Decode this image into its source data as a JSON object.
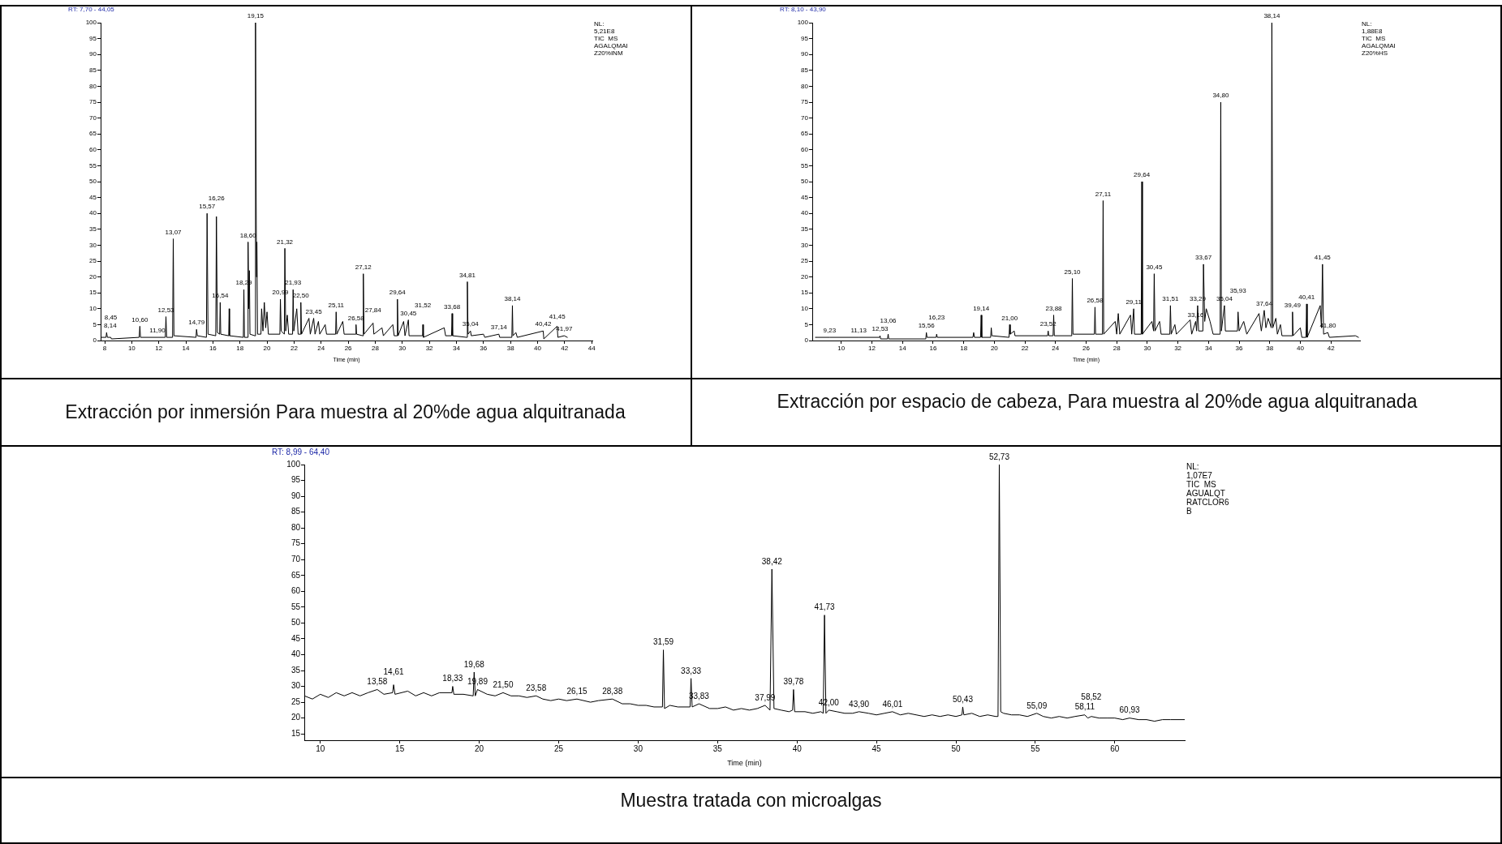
{
  "chart_data": [
    {
      "type": "line",
      "title": "Extracción por inmersión Para muestra al 20%de agua alquitranada",
      "subtitle": "RT: 7,70 - 44,05",
      "xlabel": "Time (min)",
      "xlim": [
        7.7,
        44.05
      ],
      "xticks": [
        8,
        10,
        12,
        14,
        16,
        18,
        20,
        22,
        24,
        26,
        28,
        30,
        32,
        34,
        36,
        38,
        40,
        42,
        44
      ],
      "ylim": [
        0,
        100
      ],
      "yticks": [
        0,
        5,
        10,
        15,
        20,
        25,
        30,
        35,
        40,
        45,
        50,
        55,
        60,
        65,
        70,
        75,
        80,
        85,
        90,
        95,
        100
      ],
      "series": [
        {
          "color": "#000000",
          "x": [
            7.7,
            8.1,
            8.14,
            8.2,
            8.45,
            8.5,
            10.55,
            10.6,
            10.65,
            11.9,
            12.48,
            12.53,
            12.58,
            13.02,
            13.07,
            13.12,
            14.75,
            14.79,
            14.85,
            15.52,
            15.57,
            15.64,
            16.21,
            16.26,
            16.33,
            16.5,
            16.54,
            16.58,
            17.17,
            17.2,
            17.23,
            18.25,
            18.29,
            18.33,
            18.56,
            18.6,
            18.65,
            18.7,
            18.74,
            19.1,
            19.15,
            19.22,
            19.25,
            19.3,
            19.55,
            19.6,
            19.7,
            19.8,
            19.9,
            20.0,
            20.1,
            20.95,
            20.99,
            21.05,
            21.28,
            21.32,
            21.38,
            21.5,
            21.6,
            21.89,
            21.93,
            21.98,
            22.2,
            22.3,
            22.46,
            22.5,
            22.55,
            23.1,
            23.2,
            23.45,
            23.55,
            23.8,
            23.9,
            24.3,
            24.4,
            25.07,
            25.11,
            25.16,
            25.6,
            25.7,
            26.55,
            26.58,
            26.62,
            27.08,
            27.12,
            27.17,
            27.84,
            27.9,
            28.5,
            28.6,
            29.3,
            29.4,
            29.6,
            29.64,
            29.69,
            30.1,
            30.2,
            30.45,
            30.5,
            31.5,
            31.52,
            31.56,
            33.1,
            33.2,
            33.64,
            33.68,
            33.72,
            34.77,
            34.81,
            34.86,
            35.04,
            35.1,
            36.0,
            36.1,
            37.14,
            37.2,
            38.1,
            38.14,
            38.18,
            38.4,
            38.5,
            40.42,
            40.46,
            41.45,
            41.5,
            41.97,
            42.2
          ],
          "values": [
            1,
            1,
            2.5,
            1,
            1,
            0.5,
            1,
            4.5,
            1,
            1,
            1,
            7.5,
            1,
            1,
            32,
            1.5,
            1,
            3.5,
            1.5,
            1,
            40,
            2,
            1.5,
            39,
            2.5,
            2,
            12,
            2,
            1.5,
            10,
            1.5,
            1,
            16,
            1,
            1,
            31,
            10,
            22,
            2,
            1.5,
            100,
            20,
            31,
            2,
            2,
            10,
            3,
            12,
            4,
            9,
            2,
            2,
            13,
            3,
            2,
            29,
            3,
            8,
            2,
            2,
            16,
            3,
            10,
            2,
            2,
            12,
            2,
            7,
            2,
            7,
            2,
            6,
            2,
            5,
            2,
            2,
            9,
            2,
            6,
            2,
            2,
            5,
            2,
            1.5,
            21,
            2,
            5.5,
            2,
            4,
            1.5,
            5,
            1.5,
            1.5,
            13,
            1.5,
            6,
            1.5,
            6.5,
            1.5,
            1.5,
            5,
            1,
            4,
            1.5,
            1.5,
            8.5,
            1.5,
            1,
            18.5,
            2,
            3,
            1.5,
            2,
            1,
            2,
            1,
            1,
            11,
            1.5,
            2.5,
            1,
            3,
            0.5,
            4.5,
            1,
            1.5,
            1
          ]
        }
      ],
      "annotations": [
        "NL:",
        "5,21E8",
        "TIC  MS",
        "AGALQMAI",
        "Z20%INM",
        {
          "text": "8,14",
          "x": 8.14,
          "y": 2.5
        },
        {
          "text": "8,45",
          "x": 8.45,
          "y": 1
        },
        {
          "text": "10,60",
          "x": 10.6,
          "y": 4.5
        },
        {
          "text": "11,90",
          "x": 11.9,
          "y": 1
        },
        {
          "text": "12,53",
          "x": 12.53,
          "y": 7.5
        },
        {
          "text": "13,07",
          "x": 13.07,
          "y": 32
        },
        {
          "text": "14,79",
          "x": 14.79,
          "y": 3.5
        },
        {
          "text": "15,57",
          "x": 15.57,
          "y": 40
        },
        {
          "text": "16,26",
          "x": 16.26,
          "y": 39
        },
        {
          "text": "16,54",
          "x": 16.54,
          "y": 12
        },
        {
          "text": "18,29",
          "x": 18.29,
          "y": 16
        },
        {
          "text": "18,60",
          "x": 18.6,
          "y": 31
        },
        {
          "text": "19,15",
          "x": 19.15,
          "y": 100
        },
        {
          "text": "20,99",
          "x": 20.99,
          "y": 13
        },
        {
          "text": "21,32",
          "x": 21.32,
          "y": 29
        },
        {
          "text": "21,93",
          "x": 21.93,
          "y": 16
        },
        {
          "text": "22,50",
          "x": 22.5,
          "y": 12
        },
        {
          "text": "23,45",
          "x": 23.45,
          "y": 7
        },
        {
          "text": "25,11",
          "x": 25.11,
          "y": 9
        },
        {
          "text": "26,58",
          "x": 26.58,
          "y": 5
        },
        {
          "text": "27,12",
          "x": 27.12,
          "y": 21
        },
        {
          "text": "27,84",
          "x": 27.84,
          "y": 5.5
        },
        {
          "text": "29,64",
          "x": 29.64,
          "y": 13
        },
        {
          "text": "30,45",
          "x": 30.45,
          "y": 6.5
        },
        {
          "text": "31,52",
          "x": 31.52,
          "y": 5
        },
        {
          "text": "33,68",
          "x": 33.68,
          "y": 8.5
        },
        {
          "text": "34,81",
          "x": 34.81,
          "y": 18.5
        },
        {
          "text": "35,04",
          "x": 35.04,
          "y": 3
        },
        {
          "text": "37,14",
          "x": 37.14,
          "y": 2
        },
        {
          "text": "38,14",
          "x": 38.14,
          "y": 11
        },
        {
          "text": "40,42",
          "x": 40.42,
          "y": 3
        },
        {
          "text": "41,45",
          "x": 41.45,
          "y": 4.5
        },
        {
          "text": "41,97",
          "x": 41.97,
          "y": 1.5
        }
      ]
    },
    {
      "type": "line",
      "title": "Extracción por espacio de cabeza, Para muestra al 20%de agua alquitranada",
      "subtitle": "RT: 8,10 - 43,90",
      "xlabel": "Time (min)",
      "xlim": [
        8.1,
        43.9
      ],
      "xticks": [
        10,
        12,
        14,
        16,
        18,
        20,
        22,
        24,
        26,
        28,
        30,
        32,
        34,
        36,
        38,
        40,
        42
      ],
      "ylim": [
        0,
        100
      ],
      "yticks": [
        0,
        5,
        10,
        15,
        20,
        25,
        30,
        35,
        40,
        45,
        50,
        55,
        60,
        65,
        70,
        75,
        80,
        85,
        90,
        95,
        100
      ],
      "series": [
        {
          "color": "#000000",
          "x": [
            8.3,
            9.23,
            11.13,
            12.5,
            12.53,
            12.57,
            13.02,
            13.06,
            13.1,
            15.52,
            15.56,
            15.6,
            16.2,
            16.23,
            16.27,
            18.6,
            18.65,
            18.7,
            19.1,
            19.14,
            19.18,
            19.76,
            19.8,
            19.84,
            20.96,
            21.0,
            21.04,
            21.3,
            21.35,
            23.48,
            23.52,
            23.56,
            23.84,
            23.88,
            23.92,
            25.06,
            25.1,
            25.14,
            26.54,
            26.58,
            26.62,
            27.07,
            27.11,
            27.15,
            27.9,
            28.0,
            28.1,
            28.2,
            28.9,
            28.98,
            29.11,
            29.16,
            29.6,
            29.64,
            29.68,
            30.3,
            30.41,
            30.45,
            30.5,
            30.8,
            30.9,
            31.47,
            31.51,
            31.56,
            31.8,
            31.9,
            32.8,
            32.9,
            33.16,
            33.22,
            33.29,
            33.35,
            33.63,
            33.67,
            33.75,
            33.85,
            34.1,
            34.3,
            34.76,
            34.8,
            34.84,
            35.04,
            35.1,
            35.89,
            35.93,
            36.0,
            36.3,
            36.5,
            37.3,
            37.45,
            37.64,
            37.75,
            37.9,
            38.1,
            38.14,
            38.2,
            38.4,
            38.5,
            38.7,
            38.8,
            39.45,
            39.49,
            39.53,
            40.0,
            40.1,
            40.37,
            40.41,
            40.45,
            41.3,
            41.38,
            41.45,
            41.52,
            41.8,
            41.9,
            43.6,
            43.8
          ],
          "values": [
            1,
            1,
            1,
            1,
            1.5,
            0.5,
            0.5,
            2,
            0.5,
            0.5,
            2.5,
            1,
            1,
            2,
            1,
            1,
            2.5,
            1,
            1,
            8,
            1,
            1,
            4,
            1.5,
            1,
            5,
            2,
            3,
            1.5,
            1.5,
            3,
            1.5,
            1.5,
            8,
            1.5,
            1.5,
            19.5,
            2,
            2,
            10.5,
            2,
            2,
            44,
            2,
            6,
            2,
            8.5,
            2,
            8,
            2,
            10,
            2,
            2,
            50,
            2,
            6,
            3,
            21,
            3,
            6,
            2,
            2,
            11,
            2,
            5,
            2,
            6.5,
            2,
            6,
            3,
            11,
            3,
            3,
            24,
            6,
            10,
            6,
            2,
            2,
            75,
            3,
            11,
            3,
            3,
            9,
            3,
            6,
            2,
            8.5,
            3,
            9.5,
            4,
            7,
            4,
            100,
            4,
            7,
            2,
            5,
            1.5,
            1.5,
            9,
            1.5,
            4,
            1,
            1,
            11.5,
            1,
            11,
            4,
            24,
            2,
            2.5,
            1,
            1.5,
            1
          ]
        }
      ],
      "annotations": [
        "NL:",
        "1,88E8",
        "TIC  MS",
        "AGALQMAI",
        "Z20%HS",
        {
          "text": "9,23",
          "x": 9.23,
          "y": 1
        },
        {
          "text": "11,13",
          "x": 11.13,
          "y": 1
        },
        {
          "text": "12,53",
          "x": 12.53,
          "y": 1.5
        },
        {
          "text": "13,06",
          "x": 13.06,
          "y": 2
        },
        {
          "text": "15,56",
          "x": 15.56,
          "y": 2.5
        },
        {
          "text": "16,23",
          "x": 16.23,
          "y": 2
        },
        {
          "text": "19,14",
          "x": 19.14,
          "y": 8
        },
        {
          "text": "21,00",
          "x": 21.0,
          "y": 5
        },
        {
          "text": "23,52",
          "x": 23.52,
          "y": 3
        },
        {
          "text": "23,88",
          "x": 23.88,
          "y": 8
        },
        {
          "text": "25,10",
          "x": 25.1,
          "y": 19.5
        },
        {
          "text": "26,58",
          "x": 26.58,
          "y": 10.5
        },
        {
          "text": "27,11",
          "x": 27.11,
          "y": 44
        },
        {
          "text": "29,11",
          "x": 29.11,
          "y": 10
        },
        {
          "text": "29,64",
          "x": 29.64,
          "y": 50
        },
        {
          "text": "30,45",
          "x": 30.45,
          "y": 21
        },
        {
          "text": "31,51",
          "x": 31.51,
          "y": 11
        },
        {
          "text": "33,16",
          "x": 33.16,
          "y": 6
        },
        {
          "text": "33,29",
          "x": 33.29,
          "y": 11
        },
        {
          "text": "33,67",
          "x": 33.67,
          "y": 24
        },
        {
          "text": "34,80",
          "x": 34.8,
          "y": 75
        },
        {
          "text": "35,04",
          "x": 35.04,
          "y": 11
        },
        {
          "text": "35,93",
          "x": 35.93,
          "y": 9
        },
        {
          "text": "37,64",
          "x": 37.64,
          "y": 9.5
        },
        {
          "text": "38,14",
          "x": 38.14,
          "y": 100
        },
        {
          "text": "39,49",
          "x": 39.49,
          "y": 9
        },
        {
          "text": "40,41",
          "x": 40.41,
          "y": 11.5
        },
        {
          "text": "41,45",
          "x": 41.45,
          "y": 24
        },
        {
          "text": "41,80",
          "x": 41.8,
          "y": 2.5
        }
      ]
    },
    {
      "type": "line",
      "title": "Muestra tratada con microalgas",
      "subtitle": "RT: 8,99 - 64,40",
      "xlabel": "Time (min)",
      "xlim": [
        8.99,
        64.4
      ],
      "xticks": [
        10,
        15,
        20,
        25,
        30,
        35,
        40,
        45,
        50,
        55,
        60
      ],
      "ylim": [
        13,
        100
      ],
      "yticks": [
        15,
        20,
        25,
        30,
        35,
        40,
        45,
        50,
        55,
        60,
        65,
        70,
        75,
        80,
        85,
        90,
        95,
        100
      ],
      "series": [
        {
          "color": "#000000",
          "x": [
            9.0,
            9.5,
            10,
            10.5,
            11,
            11.5,
            12,
            12.5,
            13,
            13.58,
            14,
            14.55,
            14.61,
            14.7,
            15.5,
            16,
            16.5,
            17,
            17.5,
            18.28,
            18.33,
            18.4,
            19,
            19.62,
            19.68,
            19.75,
            19.89,
            20.5,
            21,
            21.5,
            22,
            22.5,
            23,
            23.58,
            24,
            24.5,
            25,
            25.5,
            26.15,
            27,
            27.5,
            28.38,
            29,
            29.5,
            30,
            30.5,
            31,
            31.53,
            31.59,
            31.66,
            32,
            32.5,
            33.27,
            33.33,
            33.4,
            33.83,
            34.5,
            35,
            35.5,
            36,
            36.5,
            37,
            37.5,
            37.99,
            38.3,
            38.42,
            38.55,
            39,
            39.5,
            39.72,
            39.78,
            39.85,
            40.5,
            41,
            41.5,
            41.65,
            41.73,
            41.82,
            42.0,
            42.5,
            43,
            43.5,
            43.9,
            44.5,
            45,
            45.5,
            46.01,
            46.5,
            47,
            47.5,
            48,
            48.5,
            49,
            49.5,
            50,
            50.38,
            50.43,
            50.5,
            51,
            51.5,
            52,
            52.5,
            52.65,
            52.73,
            52.82,
            53,
            53.5,
            54,
            54.5,
            55.09,
            55.5,
            56,
            56.5,
            57,
            57.5,
            58.11,
            58.3,
            58.52,
            59,
            59.5,
            60,
            60.5,
            60.93,
            61.5,
            62,
            62.5,
            63,
            63.5,
            64.4
          ],
          "values": [
            27,
            26,
            27.5,
            26.5,
            28,
            27,
            28,
            27,
            28,
            29,
            27.5,
            28,
            30.5,
            27.5,
            28.5,
            27,
            28,
            27,
            28,
            28,
            30,
            27.5,
            27.5,
            27,
            34.5,
            27,
            29,
            27.5,
            27,
            28,
            27,
            27,
            26.5,
            27,
            26,
            25.5,
            26,
            25.5,
            26,
            25,
            25.5,
            26,
            24.5,
            24.5,
            24,
            24,
            23.5,
            23.5,
            41.5,
            23,
            24,
            23.5,
            23.5,
            32.5,
            23.5,
            24.5,
            23,
            23,
            23.5,
            22.5,
            23,
            22.5,
            23,
            24,
            22.5,
            67,
            23,
            22.5,
            22,
            22.5,
            29,
            22,
            22,
            21.5,
            22,
            21.5,
            52.5,
            21.5,
            22.5,
            22,
            21.5,
            21.5,
            22,
            21.5,
            21,
            21.5,
            22,
            21,
            21.5,
            21,
            20.5,
            21,
            20.5,
            21,
            20.5,
            21,
            23.5,
            21,
            21.5,
            20.5,
            21,
            20.5,
            20.5,
            100,
            22,
            21.5,
            21,
            21,
            20.5,
            21.5,
            20.5,
            20,
            20.5,
            20,
            20.5,
            21,
            20,
            20.5,
            20,
            20,
            20,
            19.5,
            20,
            19.5,
            19.5,
            19,
            19.5,
            19.5,
            19.5
          ]
        }
      ],
      "annotations": [
        "NL:",
        "1,07E7",
        "TIC  MS",
        "AGUALQT",
        "RATCLOR6",
        "B",
        {
          "text": "13,58",
          "x": 13.58,
          "y": 29
        },
        {
          "text": "14,61",
          "x": 14.61,
          "y": 30.5
        },
        {
          "text": "18,33",
          "x": 18.33,
          "y": 30
        },
        {
          "text": "19,68",
          "x": 19.68,
          "y": 34.5
        },
        {
          "text": "19,89",
          "x": 19.89,
          "y": 29
        },
        {
          "text": "21,50",
          "x": 21.5,
          "y": 28
        },
        {
          "text": "23,58",
          "x": 23.58,
          "y": 27
        },
        {
          "text": "26,15",
          "x": 26.15,
          "y": 26
        },
        {
          "text": "28,38",
          "x": 28.38,
          "y": 26
        },
        {
          "text": "31,59",
          "x": 31.59,
          "y": 41.5
        },
        {
          "text": "33,33",
          "x": 33.33,
          "y": 32.5
        },
        {
          "text": "33,83",
          "x": 33.83,
          "y": 24.5
        },
        {
          "text": "37,99",
          "x": 37.99,
          "y": 24
        },
        {
          "text": "38,42",
          "x": 38.42,
          "y": 67
        },
        {
          "text": "39,78",
          "x": 39.78,
          "y": 29
        },
        {
          "text": "41,73",
          "x": 41.73,
          "y": 52.5
        },
        {
          "text": "42,00",
          "x": 42.0,
          "y": 22.5
        },
        {
          "text": "43,90",
          "x": 43.9,
          "y": 22
        },
        {
          "text": "46,01",
          "x": 46.01,
          "y": 22
        },
        {
          "text": "50,43",
          "x": 50.43,
          "y": 23.5
        },
        {
          "text": "52,73",
          "x": 52.73,
          "y": 100
        },
        {
          "text": "55,09",
          "x": 55.09,
          "y": 21.5
        },
        {
          "text": "58,11",
          "x": 58.11,
          "y": 21
        },
        {
          "text": "58,52",
          "x": 58.52,
          "y": 20.5
        },
        {
          "text": "60,93",
          "x": 60.93,
          "y": 20
        }
      ]
    }
  ]
}
